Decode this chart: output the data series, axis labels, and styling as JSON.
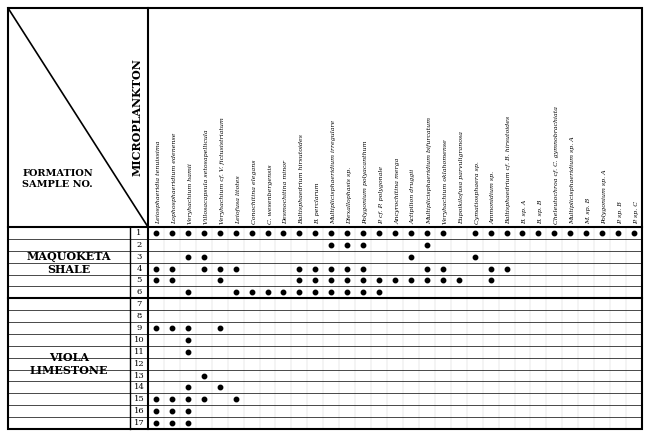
{
  "columns": [
    "Leiosphaeridia tenuissima",
    "Lophosphaeridium edenense",
    "Veryhachium hamii",
    "Villosacapsula setosapellicula",
    "Veryhachium cf. V. fictusistriatum",
    "Leiofusa litotes",
    "Conochitina elegans",
    "C. wesenbergensis",
    "Desmochitina minor",
    "Baltisphaedrium hirsutoides",
    "B. perclarum",
    "Multiplicisphaeridium irregulare",
    "Diexallophasis sp.",
    "Polygonium polyacanthum",
    "P. cf. P. polygonale",
    "Ancyrochitina merga",
    "Actipilion druggii",
    "Multiplicisphaeridium bifurcatum",
    "Veryhachium oklahomense",
    "Eupoikilofusa parvuligranosa",
    "Cymatiosphaera sp.",
    "Ammonidium sp.",
    "Baltisphaedrium cf. B. hirsutoides",
    "B. sp. A",
    "B. sp. B",
    "Cheleutochroa cf. C. gymnobrachiata",
    "Multiplicisphaeridium sp. A",
    "M. sp. B",
    "Polygonium sp. A",
    "P. sp. B",
    "P. sp. C"
  ],
  "formations": [
    {
      "name": "MAQUOKETA\nSHALE",
      "n_samples": 6
    },
    {
      "name": "VIOLA\nLIMESTONE",
      "n_samples": 11
    }
  ],
  "samples": [
    1,
    2,
    3,
    4,
    5,
    6,
    7,
    8,
    9,
    10,
    11,
    12,
    13,
    14,
    15,
    16,
    17
  ],
  "dots": {
    "1": [
      0,
      1,
      2,
      3,
      4,
      5,
      6,
      7,
      8,
      9,
      10,
      11,
      12,
      13,
      14,
      15,
      16,
      17,
      18,
      20,
      21,
      22,
      23,
      24,
      25,
      26,
      27,
      28,
      29,
      30
    ],
    "2": [
      11,
      12,
      13,
      17
    ],
    "3": [
      2,
      3,
      16,
      20
    ],
    "4": [
      0,
      1,
      3,
      4,
      5,
      9,
      10,
      11,
      12,
      13,
      17,
      18,
      21,
      22
    ],
    "5": [
      0,
      1,
      4,
      9,
      10,
      11,
      12,
      13,
      14,
      15,
      16,
      17,
      18,
      19,
      21
    ],
    "6": [
      2,
      5,
      6,
      7,
      8,
      9,
      10,
      11,
      12,
      13,
      14
    ],
    "7": [],
    "8": [],
    "9": [
      0,
      1,
      2,
      4
    ],
    "10": [
      2
    ],
    "11": [
      2
    ],
    "12": [],
    "13": [
      3
    ],
    "14": [
      2,
      4
    ],
    "15": [
      0,
      1,
      2,
      3,
      5
    ],
    "16": [
      0,
      1,
      2
    ],
    "17": [
      0,
      1,
      2
    ]
  },
  "microplankton_label": "MICROPLANKTON",
  "formation_label": "FORMATION\nSAMPLE NO.",
  "bg_color": "#ffffff",
  "dot_color": "#000000"
}
